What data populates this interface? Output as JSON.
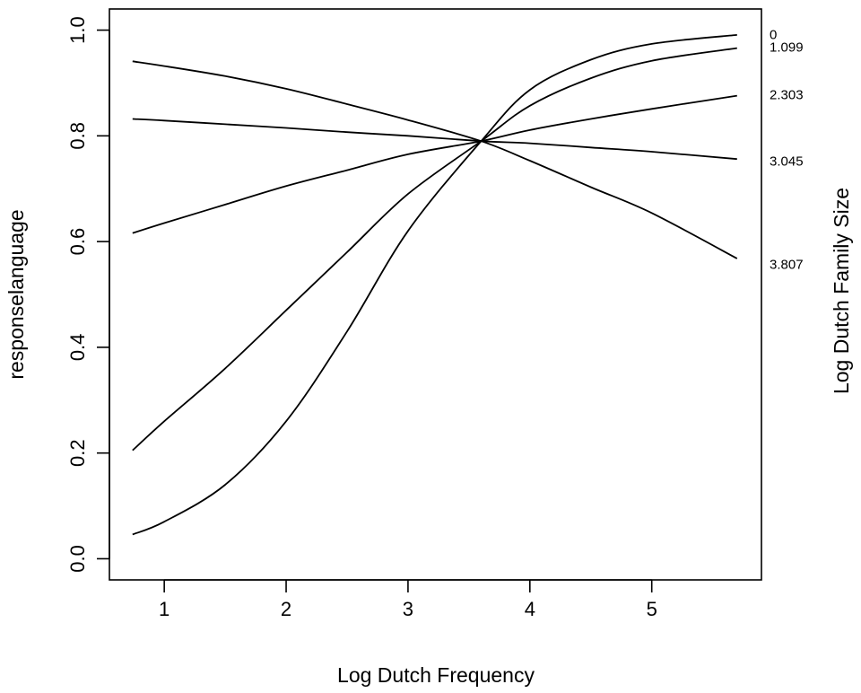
{
  "chart_data": {
    "type": "line",
    "title": "",
    "xlabel": "Log Dutch Frequency",
    "ylabel": "responselanguage",
    "right_label": "Log Dutch Family Size",
    "xlim": [
      0.55,
      5.9
    ],
    "ylim": [
      -0.04,
      1.04
    ],
    "xticks": [
      1,
      2,
      3,
      4,
      5
    ],
    "yticks": [
      0.0,
      0.2,
      0.4,
      0.6,
      0.8,
      1.0
    ],
    "xtick_labels": [
      "1",
      "2",
      "3",
      "4",
      "5"
    ],
    "ytick_labels": [
      "0.0",
      "0.2",
      "0.4",
      "0.6",
      "0.8",
      "1.0"
    ],
    "grid": false,
    "legend": "right margin",
    "x": [
      0.74,
      1.0,
      1.5,
      2.0,
      2.5,
      3.0,
      3.6,
      4.0,
      4.5,
      5.0,
      5.7
    ],
    "series": [
      {
        "name": "0",
        "values": [
          0.046,
          0.07,
          0.14,
          0.26,
          0.43,
          0.62,
          0.79,
          0.887,
          0.944,
          0.974,
          0.991
        ]
      },
      {
        "name": "1.099",
        "values": [
          0.205,
          0.26,
          0.36,
          0.47,
          0.58,
          0.69,
          0.79,
          0.857,
          0.909,
          0.942,
          0.966
        ]
      },
      {
        "name": "2.303",
        "values": [
          0.616,
          0.635,
          0.67,
          0.705,
          0.735,
          0.765,
          0.79,
          0.811,
          0.832,
          0.851,
          0.876
        ]
      },
      {
        "name": "3.045",
        "values": [
          0.832,
          0.829,
          0.822,
          0.815,
          0.807,
          0.8,
          0.79,
          0.786,
          0.778,
          0.77,
          0.756
        ]
      },
      {
        "name": "3.807",
        "values": [
          0.941,
          0.932,
          0.913,
          0.889,
          0.86,
          0.83,
          0.79,
          0.753,
          0.703,
          0.654,
          0.568
        ]
      }
    ],
    "label_values": [
      0.99,
      0.966,
      0.876,
      0.75,
      0.555
    ]
  }
}
